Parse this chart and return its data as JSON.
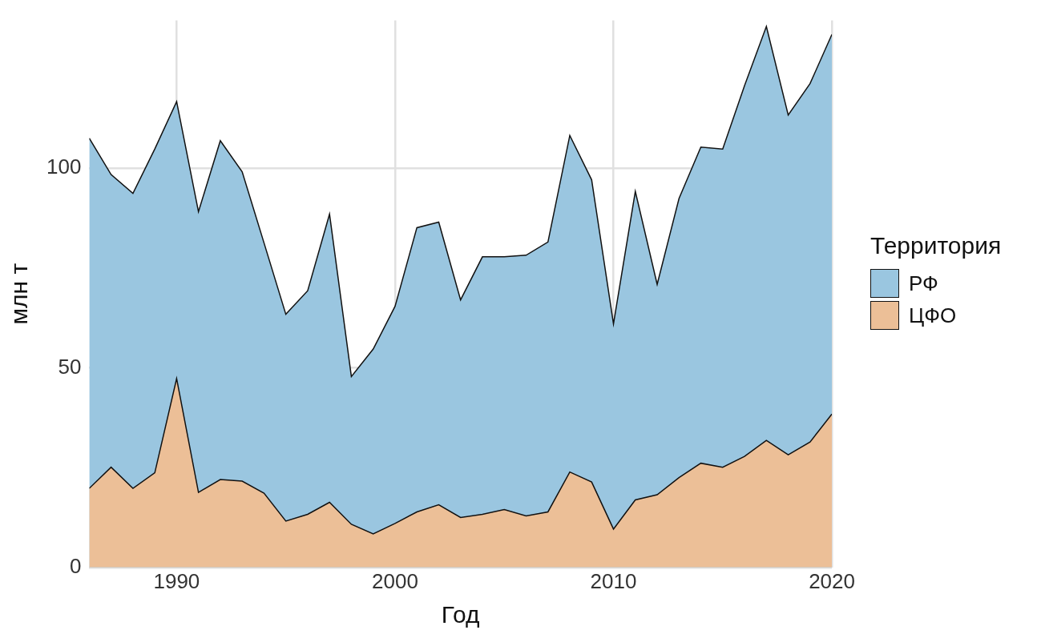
{
  "chart_data": {
    "type": "area",
    "xlabel": "Год",
    "ylabel": "млн т",
    "legend_title": "Территория",
    "legend": "right",
    "grid": true,
    "marker": "none",
    "x": [
      1986,
      1987,
      1988,
      1989,
      1990,
      1991,
      1992,
      1993,
      1994,
      1995,
      1996,
      1997,
      1998,
      1999,
      2000,
      2001,
      2002,
      2003,
      2004,
      2005,
      2006,
      2007,
      2008,
      2009,
      2010,
      2011,
      2012,
      2013,
      2014,
      2015,
      2016,
      2017,
      2018,
      2019,
      2020
    ],
    "xlim": [
      1986,
      2020
    ],
    "xticks": [
      1990,
      2000,
      2010,
      2020
    ],
    "ylim": [
      0,
      137
    ],
    "yticks": [
      0,
      50,
      100
    ],
    "series": [
      {
        "name": "РФ",
        "color": "#9ac6e0",
        "values": [
          107.5,
          98.4,
          93.7,
          104.8,
          116.7,
          89.1,
          106.9,
          99.1,
          81.3,
          63.4,
          69.3,
          88.5,
          47.8,
          54.7,
          65.4,
          85.1,
          86.5,
          67.0,
          77.8,
          77.8,
          78.2,
          81.5,
          108.2,
          97.1,
          61.0,
          94.2,
          70.9,
          92.4,
          105.3,
          104.8,
          120.7,
          135.5,
          113.3,
          121.2,
          133.5
        ]
      },
      {
        "name": "ЦФО",
        "color": "#ecbf97",
        "values": [
          19.8,
          25.1,
          19.8,
          23.7,
          47.3,
          18.8,
          22.0,
          21.6,
          18.6,
          11.6,
          13.3,
          16.3,
          10.8,
          8.4,
          11.0,
          13.9,
          15.7,
          12.5,
          13.3,
          14.5,
          12.9,
          13.9,
          23.9,
          21.4,
          9.6,
          16.9,
          18.2,
          22.5,
          26.1,
          25.1,
          27.8,
          31.8,
          28.2,
          31.4,
          38.4
        ]
      }
    ]
  }
}
